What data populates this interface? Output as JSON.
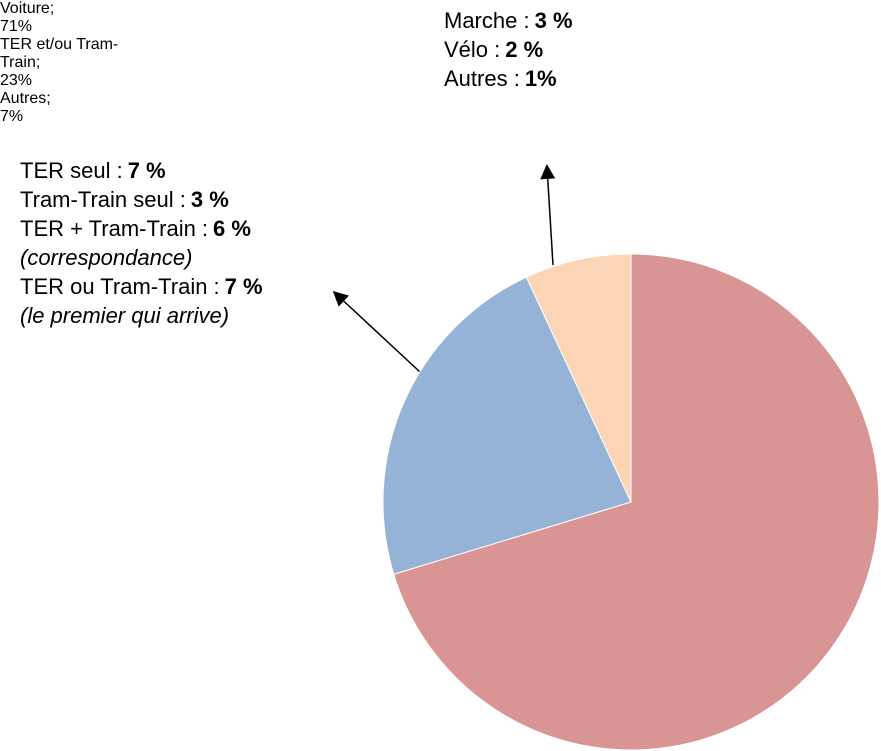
{
  "chart_data": {
    "type": "pie",
    "categories": [
      "Voiture;",
      "TER et/ou Tram-Train;",
      "Autres;"
    ],
    "values": [
      71,
      23,
      7
    ],
    "value_labels": [
      "71%",
      "23%",
      "7%"
    ],
    "colors": [
      "#d99594",
      "#95b3d7",
      "#fbd5b5"
    ],
    "annotations": [
      {
        "items": [
          {
            "label": "Marche :",
            "value": "3 %"
          },
          {
            "label": "Vélo :",
            "value": "2 %"
          },
          {
            "label": "Autres :",
            "value": "1%"
          }
        ]
      },
      {
        "items": [
          {
            "label": "TER seul :",
            "value": "7 %"
          },
          {
            "label": "Tram-Train seul :",
            "value": "3 %"
          },
          {
            "label": "TER + Tram-Train :",
            "value": "6 %",
            "note": "(correspondance)"
          },
          {
            "label": "TER ou Tram-Train :",
            "value": "7 %",
            "note": "(le premier qui arrive)"
          }
        ]
      }
    ]
  }
}
